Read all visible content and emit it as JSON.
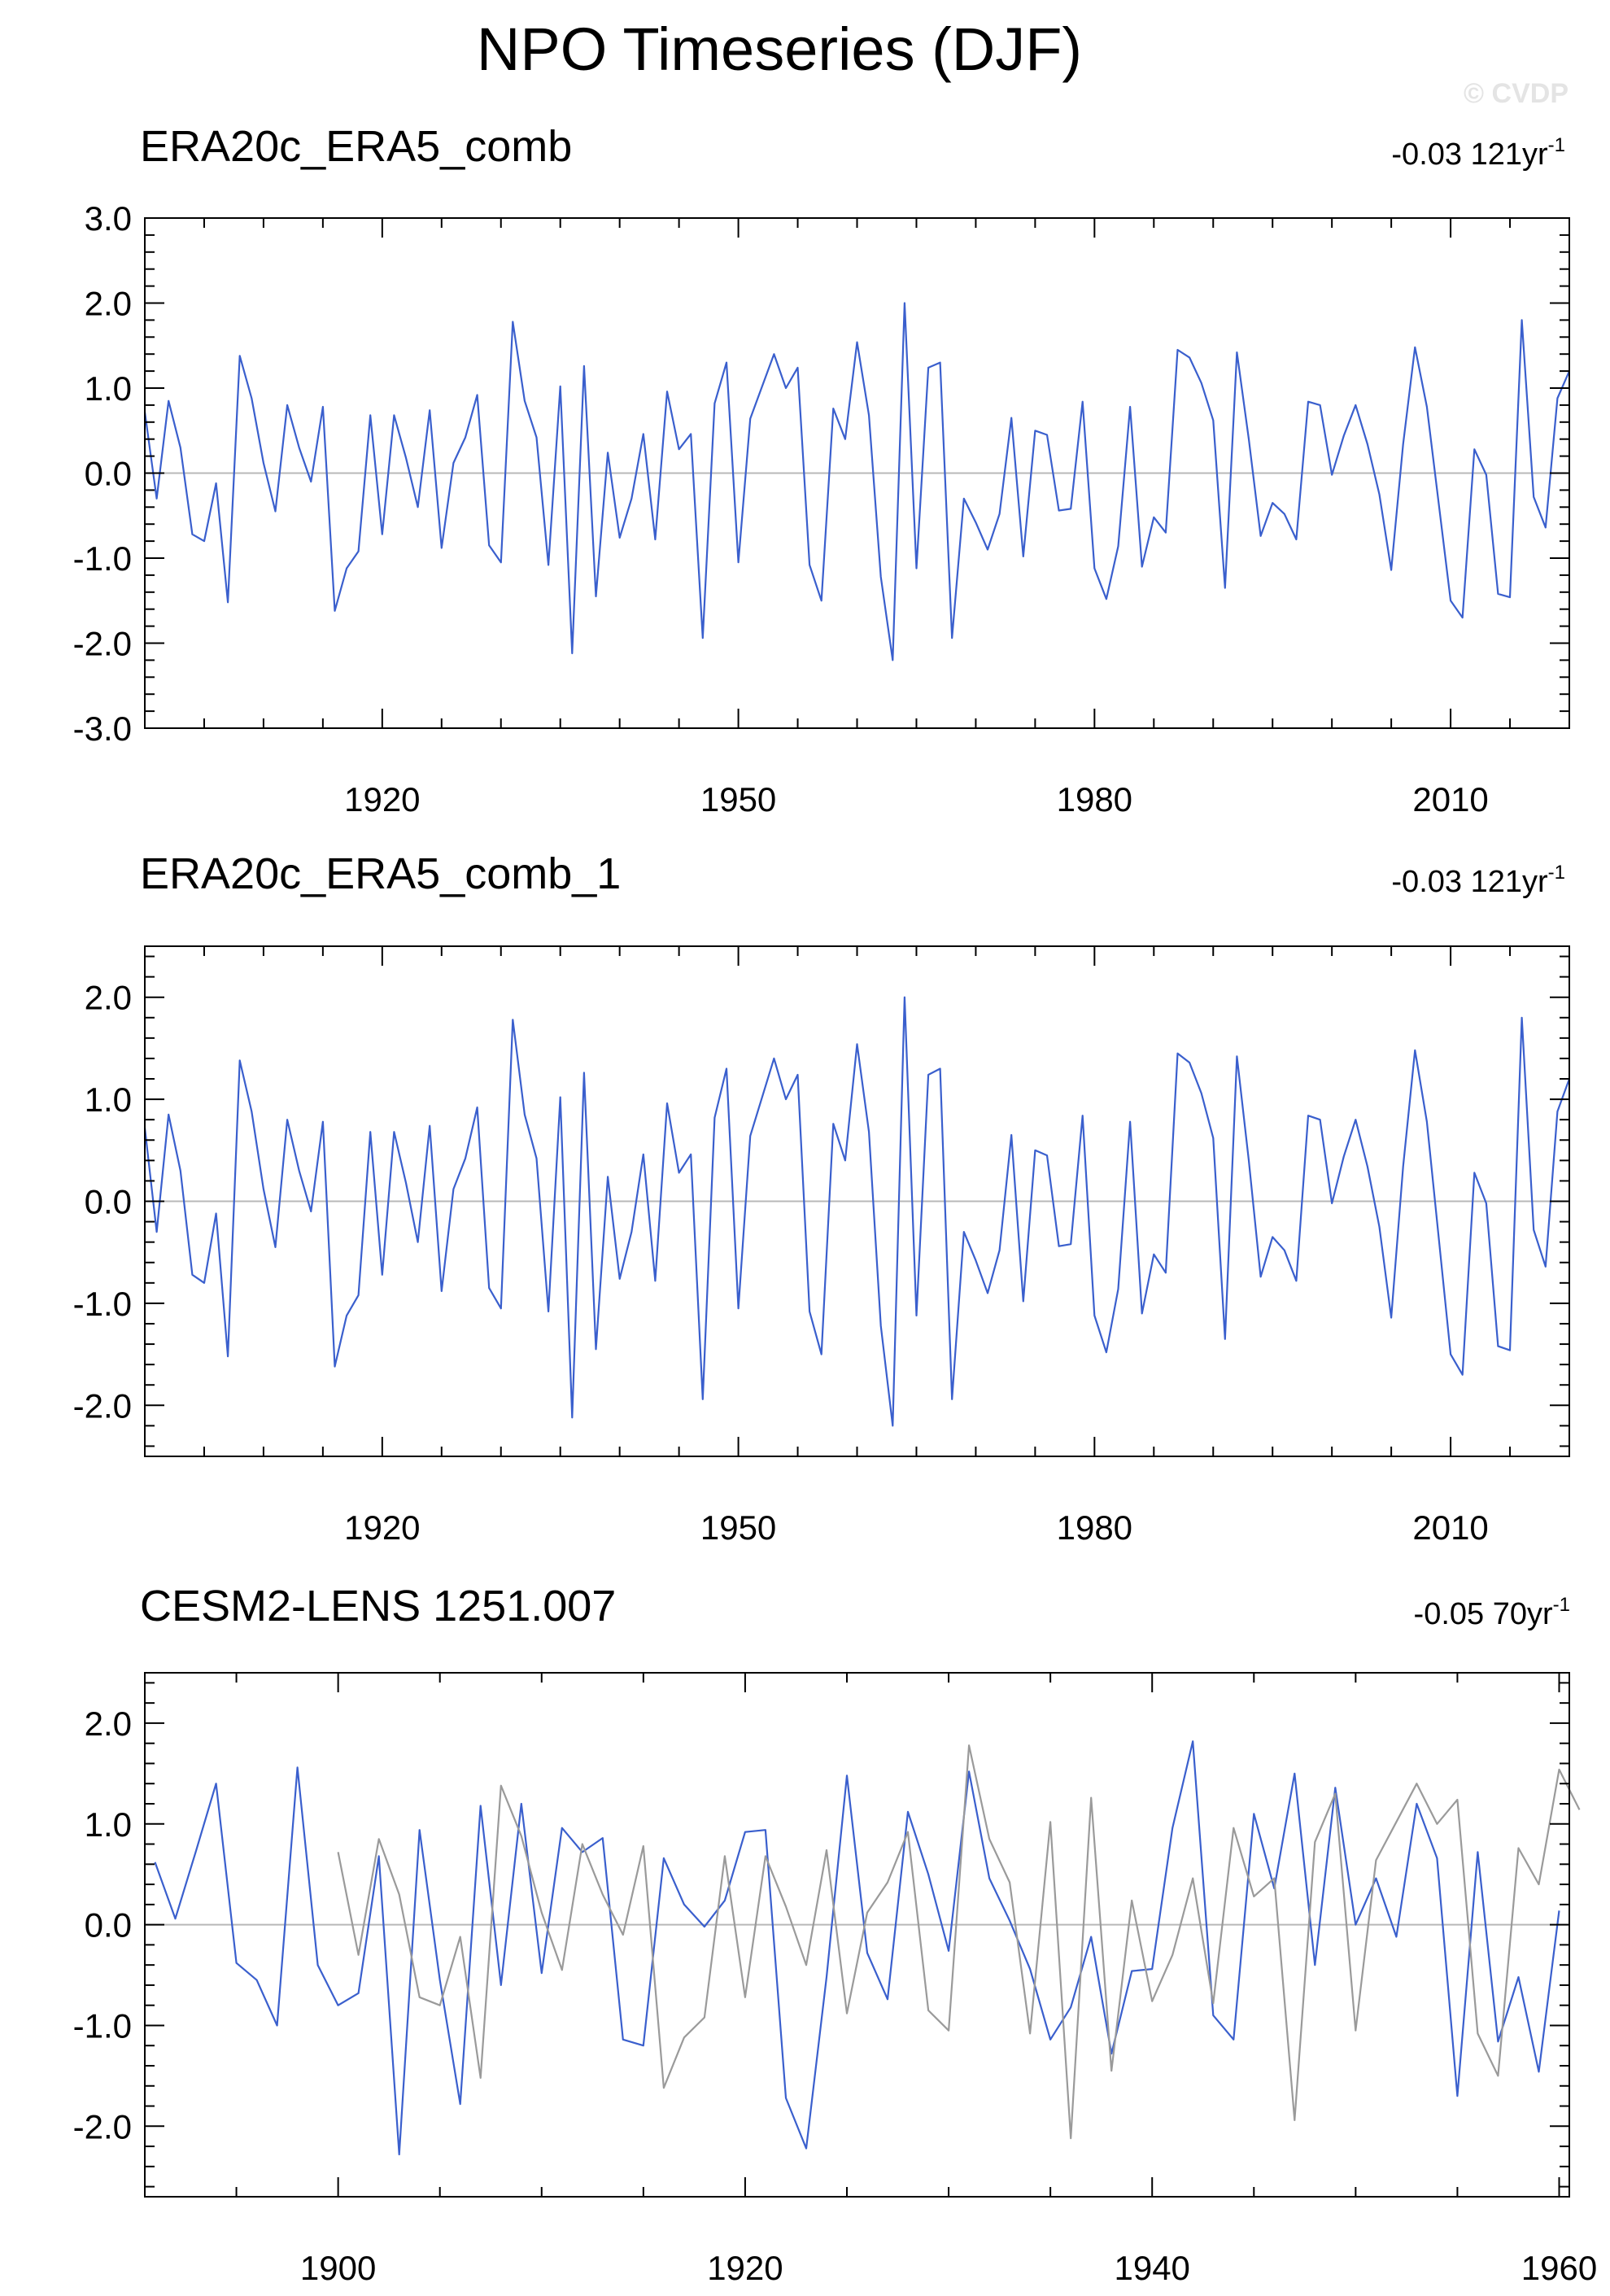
{
  "page": {
    "title": "NPO Timeseries (DJF)",
    "watermark": "© CVDP"
  },
  "colors": {
    "observed_line": "#3a5fcd",
    "reference_line": "#9a9a9a",
    "zero_line": "#b8b8b8",
    "axis": "#000000"
  },
  "chart_data": [
    {
      "type": "line",
      "title": "ERA20c_ERA5_comb",
      "trend_value": "-0.03",
      "trend_period": "121yr",
      "trend_exponent": "-1",
      "xlim": [
        1900,
        2020
      ],
      "ylim": [
        -3,
        3
      ],
      "x_ticks": [
        1920,
        1950,
        1980,
        2010
      ],
      "y_ticks": [
        -3,
        -2,
        -1,
        0,
        1,
        2,
        3
      ],
      "y_tick_labels": [
        "-3.0",
        "-2.0",
        "-1.0",
        "0.0",
        "1.0",
        "2.0",
        "3.0"
      ],
      "series": [
        {
          "x_start": 1900,
          "values": [
            0.72,
            -0.3,
            0.85,
            0.3,
            -0.72,
            -0.8,
            -0.12,
            -1.52,
            1.38,
            0.88,
            0.12,
            -0.45,
            0.8,
            0.3,
            -0.1,
            0.78,
            -1.62,
            -1.12,
            -0.92,
            0.68,
            -0.72,
            0.68,
            0.18,
            -0.4,
            0.74,
            -0.88,
            0.12,
            0.42,
            0.92,
            -0.85,
            -1.05,
            1.78,
            0.85,
            0.42,
            -1.08,
            1.02,
            -2.12,
            1.26,
            -1.45,
            0.24,
            -0.76,
            -0.3,
            0.46,
            -0.78,
            0.96,
            0.28,
            0.46,
            -1.94,
            0.82,
            1.3,
            -1.05,
            0.64,
            1.02,
            1.4,
            1.0,
            1.24,
            -1.08,
            -1.5,
            0.76,
            0.4,
            1.54,
            0.68,
            -1.22,
            -2.2,
            2.0,
            -1.12,
            1.24,
            1.3,
            -1.94,
            -0.3,
            -0.58,
            -0.9,
            -0.48,
            0.65,
            -0.98,
            0.5,
            0.45,
            -0.44,
            -0.42,
            0.84,
            -1.12,
            -1.48,
            -0.86,
            0.78,
            -1.1,
            -0.52,
            -0.7,
            1.45,
            1.36,
            1.06,
            0.62,
            -1.35,
            1.42,
            0.4,
            -0.74,
            -0.35,
            -0.48,
            -0.78,
            0.84,
            0.8,
            -0.02,
            0.44,
            0.8,
            0.34,
            -0.25,
            -1.14,
            0.34,
            1.48,
            0.78,
            -0.36,
            -1.5,
            -1.7,
            0.28,
            -0.02,
            -1.42,
            -1.46,
            1.8,
            -0.28,
            -0.64,
            0.88,
            1.2
          ]
        }
      ]
    },
    {
      "type": "line",
      "title": "ERA20c_ERA5_comb_1",
      "trend_value": "-0.03",
      "trend_period": "121yr",
      "trend_exponent": "-1",
      "xlim": [
        1900,
        2020
      ],
      "ylim": [
        -2.5,
        2.5
      ],
      "x_ticks": [
        1920,
        1950,
        1980,
        2010
      ],
      "y_ticks": [
        -2,
        -1,
        0,
        1,
        2
      ],
      "y_tick_labels": [
        "-2.0",
        "-1.0",
        "0.0",
        "1.0",
        "2.0"
      ],
      "series": [
        {
          "x_start": 1900,
          "values": [
            0.72,
            -0.3,
            0.85,
            0.3,
            -0.72,
            -0.8,
            -0.12,
            -1.52,
            1.38,
            0.88,
            0.12,
            -0.45,
            0.8,
            0.3,
            -0.1,
            0.78,
            -1.62,
            -1.12,
            -0.92,
            0.68,
            -0.72,
            0.68,
            0.18,
            -0.4,
            0.74,
            -0.88,
            0.12,
            0.42,
            0.92,
            -0.85,
            -1.05,
            1.78,
            0.85,
            0.42,
            -1.08,
            1.02,
            -2.12,
            1.26,
            -1.45,
            0.24,
            -0.76,
            -0.3,
            0.46,
            -0.78,
            0.96,
            0.28,
            0.46,
            -1.94,
            0.82,
            1.3,
            -1.05,
            0.64,
            1.02,
            1.4,
            1.0,
            1.24,
            -1.08,
            -1.5,
            0.76,
            0.4,
            1.54,
            0.68,
            -1.22,
            -2.2,
            2.0,
            -1.12,
            1.24,
            1.3,
            -1.94,
            -0.3,
            -0.58,
            -0.9,
            -0.48,
            0.65,
            -0.98,
            0.5,
            0.45,
            -0.44,
            -0.42,
            0.84,
            -1.12,
            -1.48,
            -0.86,
            0.78,
            -1.1,
            -0.52,
            -0.7,
            1.45,
            1.36,
            1.06,
            0.62,
            -1.35,
            1.42,
            0.4,
            -0.74,
            -0.35,
            -0.48,
            -0.78,
            0.84,
            0.8,
            -0.02,
            0.44,
            0.8,
            0.34,
            -0.25,
            -1.14,
            0.34,
            1.48,
            0.78,
            -0.36,
            -1.5,
            -1.7,
            0.28,
            -0.02,
            -1.42,
            -1.46,
            1.8,
            -0.28,
            -0.64,
            0.88,
            1.2
          ]
        }
      ]
    },
    {
      "type": "line",
      "title": "CESM2-LENS 1251.007",
      "trend_value": "-0.05",
      "trend_period": "70yr",
      "trend_exponent": "-1",
      "xlim": [
        1890.5,
        1960.5
      ],
      "ylim": [
        -2.7,
        2.5
      ],
      "x_ticks": [
        1900,
        1920,
        1940,
        1960
      ],
      "y_ticks": [
        -2,
        -1,
        0,
        1,
        2
      ],
      "y_tick_labels": [
        "-2.0",
        "-1.0",
        "0.0",
        "1.0",
        "2.0"
      ],
      "series": [
        {
          "x_start": 1891,
          "values": [
            0.62,
            0.06,
            0.72,
            1.4,
            -0.38,
            -0.55,
            -1.0,
            1.56,
            -0.4,
            -0.8,
            -0.68,
            0.68,
            -2.28,
            0.94,
            -0.55,
            -1.78,
            1.18,
            -0.6,
            1.2,
            -0.48,
            0.96,
            0.72,
            0.86,
            -1.14,
            -1.2,
            0.66,
            0.2,
            -0.02,
            0.24,
            0.92,
            0.94,
            -1.72,
            -2.22,
            -0.52,
            1.48,
            -0.28,
            -0.74,
            1.12,
            0.5,
            -0.26,
            1.52,
            0.46,
            0.04,
            -0.44,
            -1.14,
            -0.82,
            -0.12,
            -1.28,
            -0.46,
            -0.44,
            0.96,
            1.82,
            -0.9,
            -1.14,
            1.1,
            0.36,
            1.5,
            -0.4,
            1.36,
            0.0,
            0.46,
            -0.12,
            1.2,
            0.66,
            -1.7,
            0.72,
            -1.16,
            -0.52,
            -1.46,
            0.14
          ]
        },
        {
          "x_start": 1900,
          "values": [
            0.72,
            -0.3,
            0.85,
            0.3,
            -0.72,
            -0.8,
            -0.12,
            -1.52,
            1.38,
            0.88,
            0.12,
            -0.45,
            0.8,
            0.3,
            -0.1,
            0.78,
            -1.62,
            -1.12,
            -0.92,
            0.68,
            -0.72,
            0.68,
            0.18,
            -0.4,
            0.74,
            -0.88,
            0.12,
            0.42,
            0.92,
            -0.85,
            -1.05,
            1.78,
            0.85,
            0.42,
            -1.08,
            1.02,
            -2.12,
            1.26,
            -1.45,
            0.24,
            -0.76,
            -0.3,
            0.46,
            -0.78,
            0.96,
            0.28,
            0.46,
            -1.94,
            0.82,
            1.3,
            -1.05,
            0.64,
            1.02,
            1.4,
            1.0,
            1.24,
            -1.08,
            -1.5,
            0.76,
            0.4,
            1.54,
            1.14
          ]
        }
      ]
    }
  ]
}
